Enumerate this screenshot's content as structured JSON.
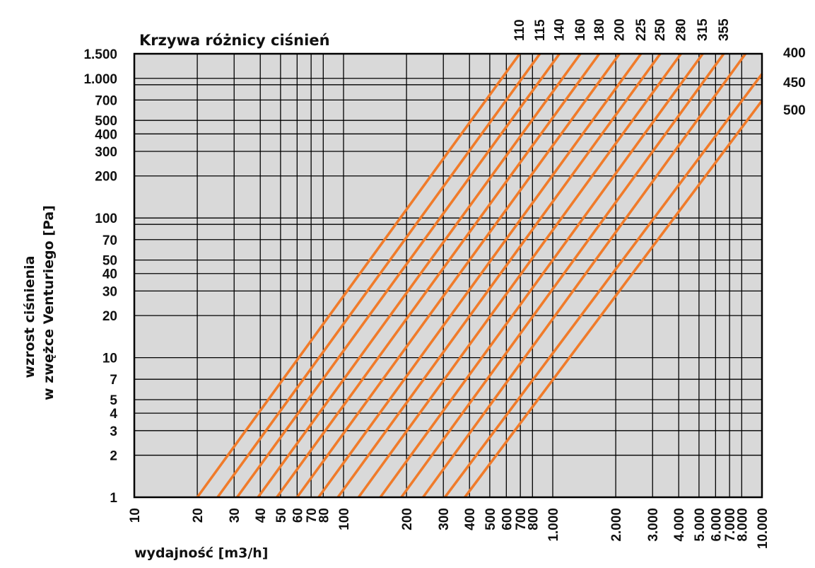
{
  "chart_data": {
    "type": "line",
    "title": "Krzywa różnicy ciśnień",
    "xlabel": "wydajność [m3/h]",
    "ylabel_line1": "wzrost ciśnienia",
    "ylabel_line2": "w zwężce Venturiego [Pa]",
    "x_scale": "log",
    "y_scale": "log",
    "xlim": [
      10,
      10000
    ],
    "ylim": [
      1,
      1500
    ],
    "grid": true,
    "colors": {
      "plot_background": "#d9d9d9",
      "grid": "#000000",
      "line": "#f07b2a"
    },
    "x_gridlines": [
      20,
      30,
      40,
      50,
      60,
      70,
      80,
      100,
      200,
      300,
      400,
      500,
      600,
      700,
      800,
      1000,
      2000,
      3000,
      4000,
      5000,
      6000,
      7000,
      8000
    ],
    "y_gridlines": [
      2,
      3,
      4,
      5,
      7,
      10,
      20,
      30,
      40,
      50,
      70,
      90,
      100,
      200,
      300,
      400,
      500,
      700,
      900,
      1000
    ],
    "x_ticks": [
      {
        "value": 10,
        "label": "10"
      },
      {
        "value": 20,
        "label": "20"
      },
      {
        "value": 30,
        "label": "30"
      },
      {
        "value": 40,
        "label": "40"
      },
      {
        "value": 50,
        "label": "50"
      },
      {
        "value": 60,
        "label": "60"
      },
      {
        "value": 70,
        "label": "70"
      },
      {
        "value": 80,
        "label": "80"
      },
      {
        "value": 100,
        "label": "100"
      },
      {
        "value": 200,
        "label": "200"
      },
      {
        "value": 300,
        "label": "300"
      },
      {
        "value": 400,
        "label": "400"
      },
      {
        "value": 500,
        "label": "500"
      },
      {
        "value": 600,
        "label": "600"
      },
      {
        "value": 700,
        "label": "700"
      },
      {
        "value": 800,
        "label": "800"
      },
      {
        "value": 1000,
        "label": "1.000"
      },
      {
        "value": 2000,
        "label": "2.000"
      },
      {
        "value": 3000,
        "label": "3.000"
      },
      {
        "value": 4000,
        "label": "4.000"
      },
      {
        "value": 5000,
        "label": "5.000"
      },
      {
        "value": 6000,
        "label": "6.000"
      },
      {
        "value": 7000,
        "label": "7.000"
      },
      {
        "value": 8000,
        "label": "8.000"
      },
      {
        "value": 10000,
        "label": "10.000"
      }
    ],
    "y_ticks": [
      {
        "value": 1,
        "label": "1"
      },
      {
        "value": 2,
        "label": "2"
      },
      {
        "value": 3,
        "label": "3"
      },
      {
        "value": 4,
        "label": "4"
      },
      {
        "value": 5,
        "label": "5"
      },
      {
        "value": 7,
        "label": "7"
      },
      {
        "value": 10,
        "label": "10"
      },
      {
        "value": 20,
        "label": "20"
      },
      {
        "value": 30,
        "label": "30"
      },
      {
        "value": 40,
        "label": "40"
      },
      {
        "value": 50,
        "label": "50"
      },
      {
        "value": 70,
        "label": "70"
      },
      {
        "value": 100,
        "label": "100"
      },
      {
        "value": 200,
        "label": "200"
      },
      {
        "value": 300,
        "label": "300"
      },
      {
        "value": 400,
        "label": "400"
      },
      {
        "value": 500,
        "label": "500"
      },
      {
        "value": 700,
        "label": "700"
      },
      {
        "value": 1000,
        "label": "1.000"
      },
      {
        "value": 1500,
        "label": "1.500"
      }
    ],
    "series": [
      {
        "name": "110",
        "points": [
          [
            20,
            1
          ],
          [
            695,
            1500
          ]
        ]
      },
      {
        "name": "115",
        "points": [
          [
            25,
            1
          ],
          [
            868,
            1500
          ]
        ]
      },
      {
        "name": "140",
        "points": [
          [
            31,
            1
          ],
          [
            1077,
            1500
          ]
        ]
      },
      {
        "name": "160",
        "points": [
          [
            39,
            1
          ],
          [
            1355,
            1500
          ]
        ]
      },
      {
        "name": "180",
        "points": [
          [
            48,
            1
          ],
          [
            1668,
            1500
          ]
        ]
      },
      {
        "name": "200",
        "points": [
          [
            60,
            1
          ],
          [
            2085,
            1500
          ]
        ]
      },
      {
        "name": "225",
        "points": [
          [
            76,
            1
          ],
          [
            2640,
            1500
          ]
        ]
      },
      {
        "name": "250",
        "points": [
          [
            94,
            1
          ],
          [
            3265,
            1500
          ]
        ]
      },
      {
        "name": "280",
        "points": [
          [
            118,
            1
          ],
          [
            4100,
            1500
          ]
        ]
      },
      {
        "name": "315",
        "points": [
          [
            150,
            1
          ],
          [
            5210,
            1500
          ]
        ]
      },
      {
        "name": "355",
        "points": [
          [
            189,
            1
          ],
          [
            6565,
            1500
          ]
        ]
      },
      {
        "name": "400",
        "points": [
          [
            240,
            1
          ],
          [
            8340,
            1500
          ]
        ]
      },
      {
        "name": "450",
        "points": [
          [
            305,
            1
          ],
          [
            10000,
            1074
          ]
        ]
      },
      {
        "name": "500",
        "points": [
          [
            380,
            1
          ],
          [
            10000,
            692
          ]
        ]
      }
    ],
    "top_labels": [
      "110",
      "115",
      "140",
      "160",
      "180",
      "200",
      "225",
      "250",
      "280",
      "315",
      "355"
    ],
    "right_labels": [
      "400",
      "450",
      "500"
    ]
  }
}
